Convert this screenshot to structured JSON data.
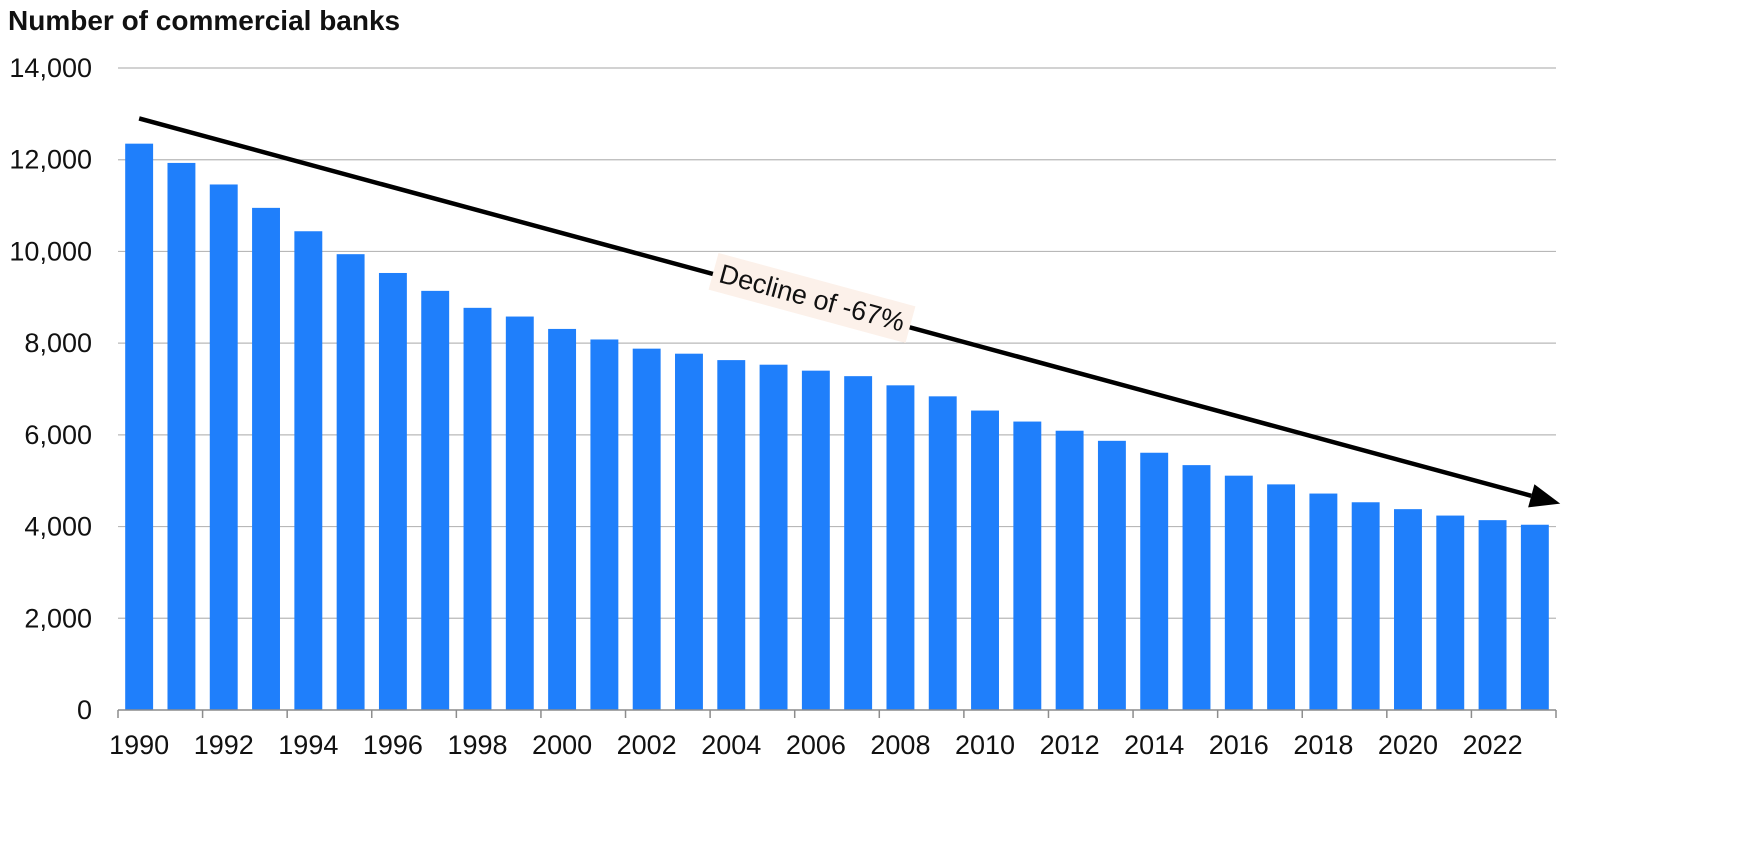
{
  "chart_data": {
    "type": "bar",
    "title": "Number of commercial banks",
    "xlabel": "",
    "ylabel": "",
    "categories": [
      1990,
      1991,
      1992,
      1993,
      1994,
      1995,
      1996,
      1997,
      1998,
      1999,
      2000,
      2001,
      2002,
      2003,
      2004,
      2005,
      2006,
      2007,
      2008,
      2009,
      2010,
      2011,
      2012,
      2013,
      2014,
      2015,
      2016,
      2017,
      2018,
      2019,
      2020,
      2021,
      2022,
      2023
    ],
    "values": [
      12350,
      11930,
      11460,
      10950,
      10440,
      9940,
      9530,
      9140,
      8770,
      8580,
      8310,
      8080,
      7880,
      7770,
      7630,
      7530,
      7400,
      7280,
      7080,
      6840,
      6530,
      6290,
      6090,
      5870,
      5610,
      5340,
      5110,
      4920,
      4720,
      4530,
      4380,
      4240,
      4140,
      4040
    ],
    "ylim": [
      0,
      14000
    ],
    "yticks": [
      0,
      2000,
      4000,
      6000,
      8000,
      10000,
      12000,
      14000
    ],
    "ytick_labels": [
      "0",
      "2,000",
      "4,000",
      "6,000",
      "8,000",
      "10,000",
      "12,000",
      "14,000"
    ],
    "xtick_labels": [
      "1990",
      "1992",
      "1994",
      "1996",
      "1998",
      "2000",
      "2002",
      "2004",
      "2006",
      "2008",
      "2010",
      "2012",
      "2014",
      "2016",
      "2018",
      "2020",
      "2022"
    ],
    "grid": true,
    "bar_color": "#1f7ffb",
    "annotation": {
      "text": "Decline of -67%",
      "arrow_from": [
        1990,
        12900
      ],
      "arrow_to": [
        2023.6,
        4500
      ],
      "label_background": "#fcf1ea"
    }
  }
}
